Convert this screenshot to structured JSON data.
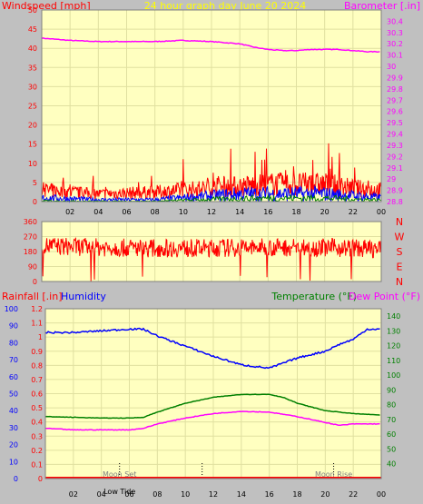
{
  "colors": {
    "background": "#c0c0c0",
    "plot_bg": "#ffffc0",
    "grid": "#e0e0a0",
    "windspeed": "#ff0000",
    "gust": "#0000ff",
    "wind_green": "#008000",
    "barometer": "#ff00ff",
    "title": "#ffff00",
    "direction": "#ff0000",
    "rainfall": "#ff0000",
    "humidity": "#0000ff",
    "temperature": "#008000",
    "dewpoint": "#ff00ff",
    "tick_text": "#000000",
    "moon_text": "#808080"
  },
  "chart_data": [
    {
      "type": "line",
      "title": "24 hour graph day   June 20 2024",
      "ylabel_left": "Windspeed [mph]",
      "ylabel_right": "Barometer [.in]",
      "ylim_left": [
        0,
        50
      ],
      "ylim_right": [
        28.8,
        30.5
      ],
      "yticks_left": [
        "0",
        "5",
        "10",
        "15",
        "20",
        "25",
        "30",
        "35",
        "40",
        "45",
        "50"
      ],
      "yticks_right": [
        "28.8",
        "28.9",
        "29",
        "29.1",
        "29.2",
        "29.3",
        "29.4",
        "29.5",
        "29.6",
        "29.7",
        "29.8",
        "29.9",
        "30",
        "30.1",
        "30.2",
        "30.3",
        "30.4"
      ],
      "xticks": [
        "02",
        "04",
        "06",
        "08",
        "10",
        "12",
        "14",
        "16",
        "18",
        "20",
        "22",
        "00"
      ],
      "series": [
        {
          "axis": "right",
          "hours": [
            0,
            2,
            4,
            6,
            8,
            10,
            12,
            14,
            15,
            16,
            17,
            18,
            19,
            20,
            21,
            22,
            23,
            24
          ],
          "values": [
            30.25,
            30.23,
            30.22,
            30.22,
            30.22,
            30.23,
            30.22,
            30.2,
            30.17,
            30.15,
            30.14,
            30.14,
            30.15,
            30.15,
            30.15,
            30.14,
            30.13,
            30.13
          ]
        },
        {
          "axis": "left",
          "hours": [
            0,
            4,
            8,
            12,
            14,
            16,
            18,
            20,
            22,
            24
          ],
          "values": [
            3,
            2,
            2.5,
            3.5,
            4,
            4.5,
            4.5,
            4.5,
            3.5,
            3
          ]
        },
        {
          "axis": "left",
          "hours": [
            0,
            4,
            8,
            12,
            14,
            16,
            18,
            20,
            22,
            24
          ],
          "values": [
            1,
            0.5,
            0.5,
            1.5,
            2,
            2,
            2,
            2,
            1.5,
            1
          ]
        },
        {
          "axis": "left",
          "hours": [
            0,
            4,
            8,
            12,
            16,
            20,
            24
          ],
          "values": [
            0.2,
            0.1,
            0.1,
            0.6,
            0.9,
            0.9,
            0.4
          ]
        }
      ]
    },
    {
      "type": "line",
      "ylim": [
        0,
        360
      ],
      "yticks": [
        "0",
        "90",
        "180",
        "270",
        "360"
      ],
      "compass": [
        "N",
        "W",
        "S",
        "E",
        "N"
      ],
      "series": [
        {
          "hours": [
            0,
            4,
            8,
            12,
            16,
            20,
            24
          ],
          "values": [
            215,
            205,
            200,
            200,
            205,
            205,
            195
          ]
        }
      ]
    },
    {
      "type": "line",
      "ylabel_rain": "Rainfall [.in]",
      "ylabel_humidity": "Humidity",
      "ylabel_temperature": "Temperature (°F)",
      "ylabel_dewpoint": "Dew Point (°F)",
      "ylim_humidity": [
        0,
        100
      ],
      "ylim_rain": [
        0,
        1.2
      ],
      "ylim_temp": [
        30,
        145
      ],
      "yticks_humidity": [
        "0",
        "10",
        "20",
        "30",
        "40",
        "50",
        "60",
        "70",
        "80",
        "90",
        "100"
      ],
      "yticks_rain": [
        "0",
        "0.1",
        "0.2",
        "0.3",
        "0.4",
        "0.5",
        "0.6",
        "0.7",
        "0.8",
        "0.9",
        "1",
        "1.1",
        "1.2"
      ],
      "yticks_temp": [
        "40",
        "50",
        "60",
        "70",
        "80",
        "90",
        "100",
        "110",
        "120",
        "130",
        "140"
      ],
      "xticks": [
        "02",
        "04",
        "06",
        "08",
        "10",
        "12",
        "14",
        "16",
        "18",
        "20",
        "22",
        "00"
      ],
      "moon_labels": [
        "Moon Set",
        "Low Tide",
        "Moon Rise"
      ],
      "series": [
        {
          "hours": [
            0,
            2,
            4,
            6,
            7,
            8,
            10,
            12,
            14,
            15,
            16,
            17,
            18,
            20,
            21,
            22,
            23,
            24
          ],
          "values": [
            86,
            86,
            87,
            88,
            88,
            84,
            78,
            72,
            67,
            66,
            65,
            68,
            71,
            75,
            79,
            82,
            88,
            88
          ]
        },
        {
          "hours": [
            0,
            2,
            4,
            6,
            7,
            8,
            10,
            12,
            14,
            16,
            17,
            18,
            20,
            22,
            24
          ],
          "values": [
            72,
            71.5,
            71,
            71,
            71.5,
            75,
            81,
            85,
            87,
            87,
            85,
            81,
            76,
            74,
            73
          ]
        },
        {
          "hours": [
            0,
            2,
            4,
            6,
            7,
            8,
            10,
            12,
            14,
            16,
            18,
            20,
            21,
            22,
            24
          ],
          "values": [
            64,
            63,
            63,
            63,
            64,
            67,
            71,
            74,
            75.5,
            75,
            72,
            68,
            66,
            67,
            67
          ]
        },
        {
          "hours": [
            0,
            24
          ],
          "values": [
            0,
            0
          ]
        }
      ]
    }
  ]
}
